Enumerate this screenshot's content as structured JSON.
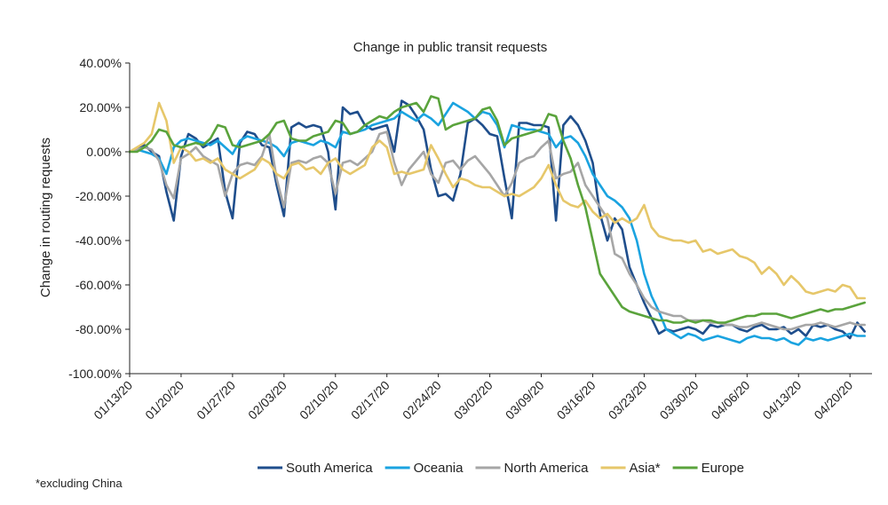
{
  "chart_data": {
    "type": "line",
    "title": "Change in public transit requests",
    "xlabel": "",
    "ylabel": "Change in routing requests",
    "ylim": [
      -100,
      40
    ],
    "y_ticks": [
      40,
      20,
      0,
      -20,
      -40,
      -60,
      -80,
      -100
    ],
    "y_tick_labels": [
      "40.00%",
      "20.00%",
      "0.00%",
      "-20.00%",
      "-40.00%",
      "-60.00%",
      "-80.00%",
      "-100.00%"
    ],
    "x_tick_labels": [
      "01/13/20",
      "01/20/20",
      "01/27/20",
      "02/03/20",
      "02/10/20",
      "02/17/20",
      "02/24/20",
      "03/02/20",
      "03/09/20",
      "03/16/20",
      "03/23/20",
      "03/30/20",
      "04/06/20",
      "04/13/20",
      "04/20/20"
    ],
    "x_tick_days": [
      0,
      7,
      14,
      21,
      28,
      35,
      42,
      49,
      56,
      63,
      70,
      77,
      84,
      91,
      98
    ],
    "x_start_day": 0,
    "x_end_day": 101,
    "footnote": "*excluding China",
    "legend_position": "bottom",
    "series": [
      {
        "name": "South America",
        "color": "#1f4e8c",
        "values": [
          0,
          1,
          3,
          0,
          -2,
          -18,
          -31,
          -2,
          8,
          6,
          2,
          4,
          6,
          -18,
          -30,
          4,
          9,
          8,
          3,
          2,
          -15,
          -29,
          11,
          13,
          11,
          12,
          11,
          0,
          -26,
          20,
          17,
          18,
          12,
          10,
          11,
          12,
          0,
          23,
          21,
          16,
          10,
          -8,
          -20,
          -19,
          -22,
          -10,
          13,
          15,
          12,
          8,
          7,
          -12,
          -30,
          13,
          13,
          12,
          12,
          11,
          -31,
          12,
          16,
          12,
          5,
          -5,
          -28,
          -40,
          -30,
          -35,
          -52,
          -60,
          -68,
          -75,
          -82,
          -80,
          -81,
          -80,
          -79,
          -80,
          -82,
          -78,
          -79,
          -78,
          -78,
          -80,
          -81,
          -79,
          -78,
          -80,
          -80,
          -79,
          -82,
          -80,
          -83,
          -78,
          -79,
          -78,
          -80,
          -81,
          -84,
          -77,
          -81
        ]
      },
      {
        "name": "Oceania",
        "color": "#1aa3e0",
        "values": [
          0,
          1,
          0,
          -1,
          -3,
          -10,
          2,
          5,
          6,
          5,
          4,
          3,
          5,
          2,
          -1,
          5,
          7,
          6,
          5,
          4,
          2,
          -2,
          4,
          5,
          4,
          3,
          5,
          4,
          2,
          9,
          8,
          9,
          10,
          12,
          13,
          14,
          15,
          18,
          16,
          14,
          17,
          15,
          12,
          17,
          22,
          20,
          18,
          15,
          18,
          17,
          12,
          2,
          12,
          11,
          10,
          10,
          9,
          8,
          2,
          6,
          7,
          4,
          -2,
          -10,
          -15,
          -20,
          -22,
          -25,
          -30,
          -40,
          -55,
          -65,
          -72,
          -80,
          -82,
          -84,
          -82,
          -83,
          -85,
          -84,
          -83,
          -84,
          -85,
          -86,
          -84,
          -83,
          -84,
          -84,
          -85,
          -84,
          -86,
          -87,
          -84,
          -85,
          -84,
          -85,
          -84,
          -83,
          -82,
          -83,
          -83
        ]
      },
      {
        "name": "North America",
        "color": "#a6a6a6",
        "values": [
          0,
          1,
          2,
          1,
          -4,
          -15,
          -21,
          -3,
          -1,
          2,
          -2,
          -4,
          -6,
          -20,
          -10,
          -6,
          -5,
          -6,
          -2,
          8,
          -12,
          -25,
          -5,
          -4,
          -5,
          -3,
          -2,
          -5,
          -19,
          -5,
          -4,
          -6,
          -3,
          0,
          8,
          9,
          -5,
          -15,
          -8,
          -4,
          0,
          -10,
          -14,
          -5,
          -4,
          -8,
          -4,
          -2,
          -6,
          -10,
          -15,
          -20,
          -14,
          -5,
          -3,
          -2,
          2,
          5,
          -12,
          -10,
          -9,
          -5,
          -15,
          -20,
          -25,
          -30,
          -46,
          -48,
          -55,
          -60,
          -66,
          -70,
          -72,
          -73,
          -74,
          -74,
          -76,
          -76,
          -76,
          -77,
          -77,
          -78,
          -78,
          -79,
          -79,
          -78,
          -77,
          -78,
          -79,
          -80,
          -80,
          -79,
          -78,
          -78,
          -77,
          -78,
          -79,
          -78,
          -77,
          -78,
          -78
        ]
      },
      {
        "name": "Asia*",
        "color": "#e6c76a",
        "values": [
          0,
          2,
          4,
          8,
          22,
          14,
          -5,
          2,
          0,
          -4,
          -3,
          -5,
          -3,
          -8,
          -10,
          -12,
          -10,
          -8,
          -3,
          -5,
          -10,
          -12,
          -6,
          -5,
          -8,
          -7,
          -10,
          -5,
          -3,
          -8,
          -10,
          -8,
          -6,
          2,
          5,
          2,
          -10,
          -9,
          -10,
          -9,
          -8,
          3,
          -3,
          -10,
          -16,
          -12,
          -13,
          -15,
          -16,
          -16,
          -18,
          -20,
          -19,
          -20,
          -18,
          -16,
          -12,
          -6,
          -15,
          -22,
          -24,
          -25,
          -22,
          -27,
          -30,
          -28,
          -32,
          -30,
          -32,
          -30,
          -24,
          -34,
          -38,
          -39,
          -40,
          -40,
          -41,
          -40,
          -45,
          -44,
          -46,
          -45,
          -44,
          -47,
          -48,
          -50,
          -55,
          -52,
          -55,
          -60,
          -56,
          -59,
          -63,
          -64,
          -63,
          -62,
          -63,
          -60,
          -61,
          -66,
          -66
        ]
      },
      {
        "name": "Europe",
        "color": "#5aa33c",
        "values": [
          0,
          0,
          2,
          5,
          10,
          9,
          3,
          2,
          3,
          4,
          3,
          6,
          12,
          11,
          3,
          2,
          3,
          4,
          5,
          8,
          13,
          14,
          6,
          5,
          5,
          7,
          8,
          9,
          14,
          13,
          8,
          9,
          12,
          14,
          16,
          15,
          18,
          20,
          21,
          22,
          18,
          25,
          24,
          10,
          12,
          13,
          14,
          15,
          19,
          20,
          14,
          3,
          6,
          7,
          8,
          9,
          10,
          17,
          16,
          5,
          -3,
          -15,
          -25,
          -40,
          -55,
          -60,
          -65,
          -70,
          -72,
          -73,
          -74,
          -75,
          -76,
          -76,
          -77,
          -77,
          -76,
          -77,
          -76,
          -76,
          -77,
          -77,
          -76,
          -75,
          -74,
          -74,
          -73,
          -73,
          -73,
          -74,
          -75,
          -74,
          -73,
          -72,
          -71,
          -72,
          -71,
          -71,
          -70,
          -69,
          -68
        ]
      }
    ]
  }
}
